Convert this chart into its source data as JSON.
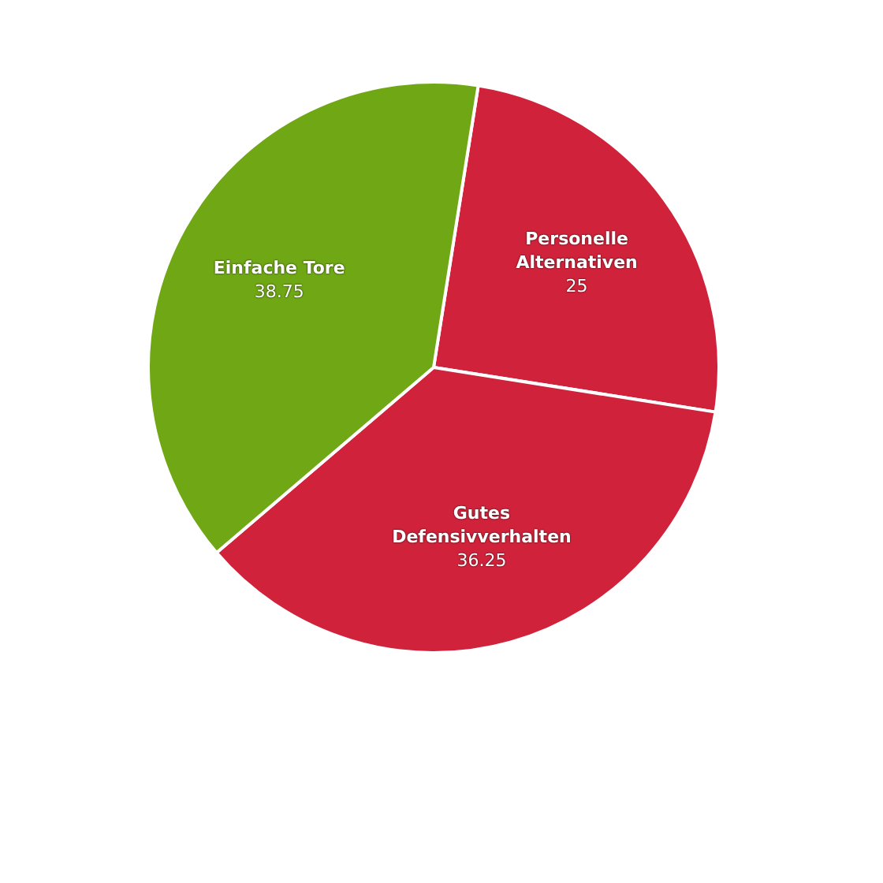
{
  "chart_data": {
    "type": "pie",
    "categories": [
      "Personelle Alternativen",
      "Gutes Defensivverhalten",
      "Einfache Tore"
    ],
    "values": [
      25,
      36.25,
      38.75
    ],
    "colors": [
      "#d0233b",
      "#d0233b",
      "#6fa814"
    ],
    "data_labels": true,
    "legend": false
  }
}
